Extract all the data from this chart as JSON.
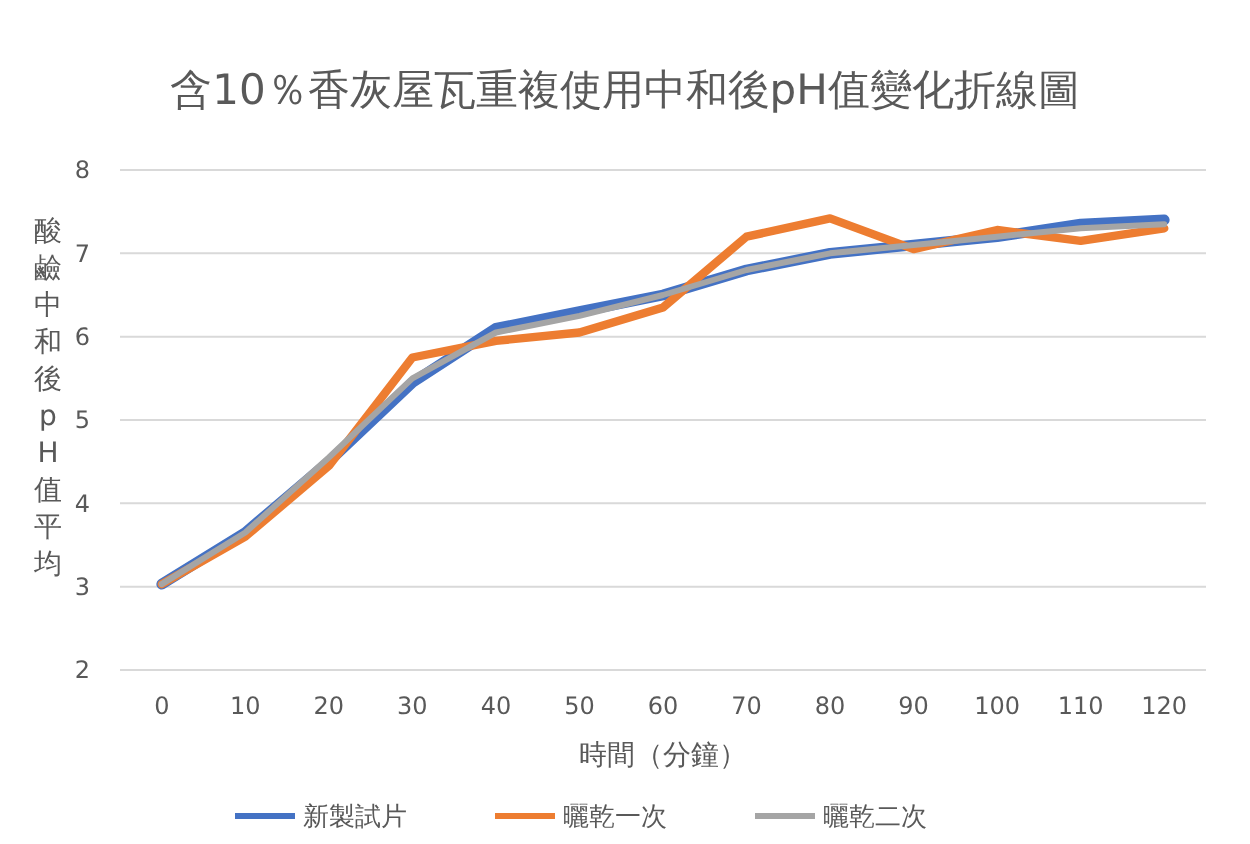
{
  "chart_data": {
    "type": "line",
    "title": "含10％香灰屋瓦重複使用中和後pH值變化折線圖",
    "xlabel": "時間（分鐘）",
    "ylabel": "酸鹼中和後pH值平均",
    "categories": [
      "0",
      "10",
      "20",
      "30",
      "40",
      "50",
      "60",
      "70",
      "80",
      "90",
      "100",
      "110",
      "120"
    ],
    "series": [
      {
        "name": "新製試片",
        "color": "#4472c4",
        "values": [
          3.03,
          3.65,
          4.5,
          5.45,
          6.1,
          6.3,
          6.5,
          6.8,
          7.0,
          7.1,
          7.2,
          7.35,
          7.4
        ]
      },
      {
        "name": "曬乾一次",
        "color": "#ed7d31",
        "values": [
          3.03,
          3.6,
          4.45,
          5.75,
          5.95,
          6.05,
          6.35,
          7.2,
          7.42,
          7.05,
          7.28,
          7.15,
          7.3
        ]
      },
      {
        "name": "曬乾二次",
        "color": "#a5a5a5",
        "values": [
          3.03,
          3.65,
          4.55,
          5.5,
          6.05,
          6.25,
          6.5,
          6.8,
          7.0,
          7.1,
          7.2,
          7.3,
          7.35
        ]
      }
    ],
    "ylim": [
      2,
      8
    ],
    "yticks": [
      2,
      3,
      4,
      5,
      6,
      7,
      8
    ],
    "grid": "y",
    "legend": "bottom",
    "marker": "none",
    "line_style": "solid"
  }
}
